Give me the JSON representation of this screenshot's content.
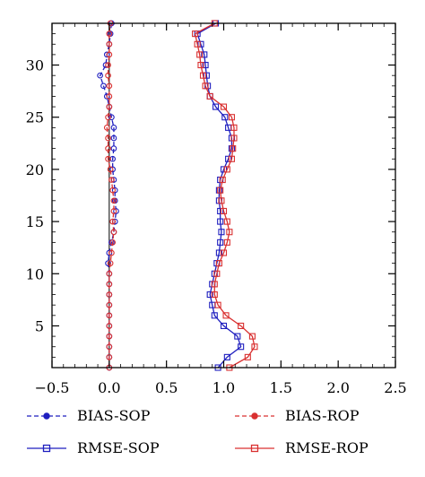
{
  "chart_data": {
    "type": "line",
    "orientation": "vertical-profile",
    "xlim": [
      -0.5,
      2.5
    ],
    "ylim": [
      1,
      34
    ],
    "x_ticks": [
      -0.5,
      0.0,
      0.5,
      1.0,
      1.5,
      2.0,
      2.5
    ],
    "x_tick_labels": [
      "−0.5",
      "0.0",
      "0.5",
      "1.0",
      "1.5",
      "2.0",
      "2.5"
    ],
    "y_ticks": [
      5,
      10,
      15,
      20,
      25,
      30
    ],
    "y_tick_labels": [
      "5",
      "10",
      "15",
      "20",
      "25",
      "30"
    ],
    "y_levels": [
      1,
      2,
      3,
      4,
      5,
      6,
      7,
      8,
      9,
      10,
      11,
      12,
      13,
      14,
      15,
      16,
      17,
      18,
      19,
      20,
      21,
      22,
      23,
      24,
      25,
      26,
      27,
      28,
      29,
      30,
      31,
      32,
      33,
      34
    ],
    "zero_line": true,
    "grid": false,
    "legend_position": "bottom",
    "series": [
      {
        "name": "BIAS-SOP",
        "color": "#1f1fbf",
        "marker": "circle",
        "dash": true,
        "x": [
          0.0,
          0.0,
          0.0,
          0.0,
          0.0,
          0.0,
          0.0,
          0.0,
          0.0,
          0.0,
          -0.01,
          0.0,
          0.02,
          0.04,
          0.05,
          0.06,
          0.05,
          0.05,
          0.04,
          0.03,
          0.03,
          0.04,
          0.04,
          0.04,
          0.02,
          0.0,
          -0.02,
          -0.05,
          -0.08,
          -0.03,
          -0.02,
          0.0,
          0.01,
          0.02
        ]
      },
      {
        "name": "BIAS-ROP",
        "color": "#d93030",
        "marker": "circle",
        "dash": true,
        "x": [
          0.0,
          0.0,
          0.0,
          0.0,
          0.0,
          0.0,
          0.0,
          0.0,
          0.0,
          0.0,
          0.01,
          0.02,
          0.03,
          0.04,
          0.03,
          0.04,
          0.04,
          0.03,
          0.02,
          0.01,
          -0.01,
          -0.01,
          -0.01,
          -0.02,
          -0.01,
          0.0,
          0.0,
          0.0,
          -0.01,
          -0.01,
          0.0,
          0.0,
          0.0,
          0.01
        ]
      },
      {
        "name": "RMSE-SOP",
        "color": "#1f1fbf",
        "marker": "square",
        "dash": false,
        "x": [
          0.95,
          1.03,
          1.15,
          1.12,
          1.0,
          0.92,
          0.9,
          0.88,
          0.9,
          0.92,
          0.94,
          0.96,
          0.97,
          0.98,
          0.97,
          0.97,
          0.96,
          0.96,
          0.97,
          1.0,
          1.04,
          1.07,
          1.07,
          1.04,
          1.01,
          0.93,
          0.88,
          0.86,
          0.85,
          0.84,
          0.83,
          0.8,
          0.77,
          0.93
        ]
      },
      {
        "name": "RMSE-ROP",
        "color": "#d93030",
        "marker": "square",
        "dash": false,
        "x": [
          1.05,
          1.21,
          1.27,
          1.25,
          1.15,
          1.02,
          0.95,
          0.92,
          0.92,
          0.94,
          0.96,
          1.0,
          1.03,
          1.05,
          1.03,
          1.0,
          0.98,
          0.97,
          0.99,
          1.03,
          1.07,
          1.08,
          1.09,
          1.09,
          1.07,
          1.0,
          0.88,
          0.84,
          0.82,
          0.8,
          0.79,
          0.77,
          0.75,
          0.92
        ]
      }
    ]
  }
}
